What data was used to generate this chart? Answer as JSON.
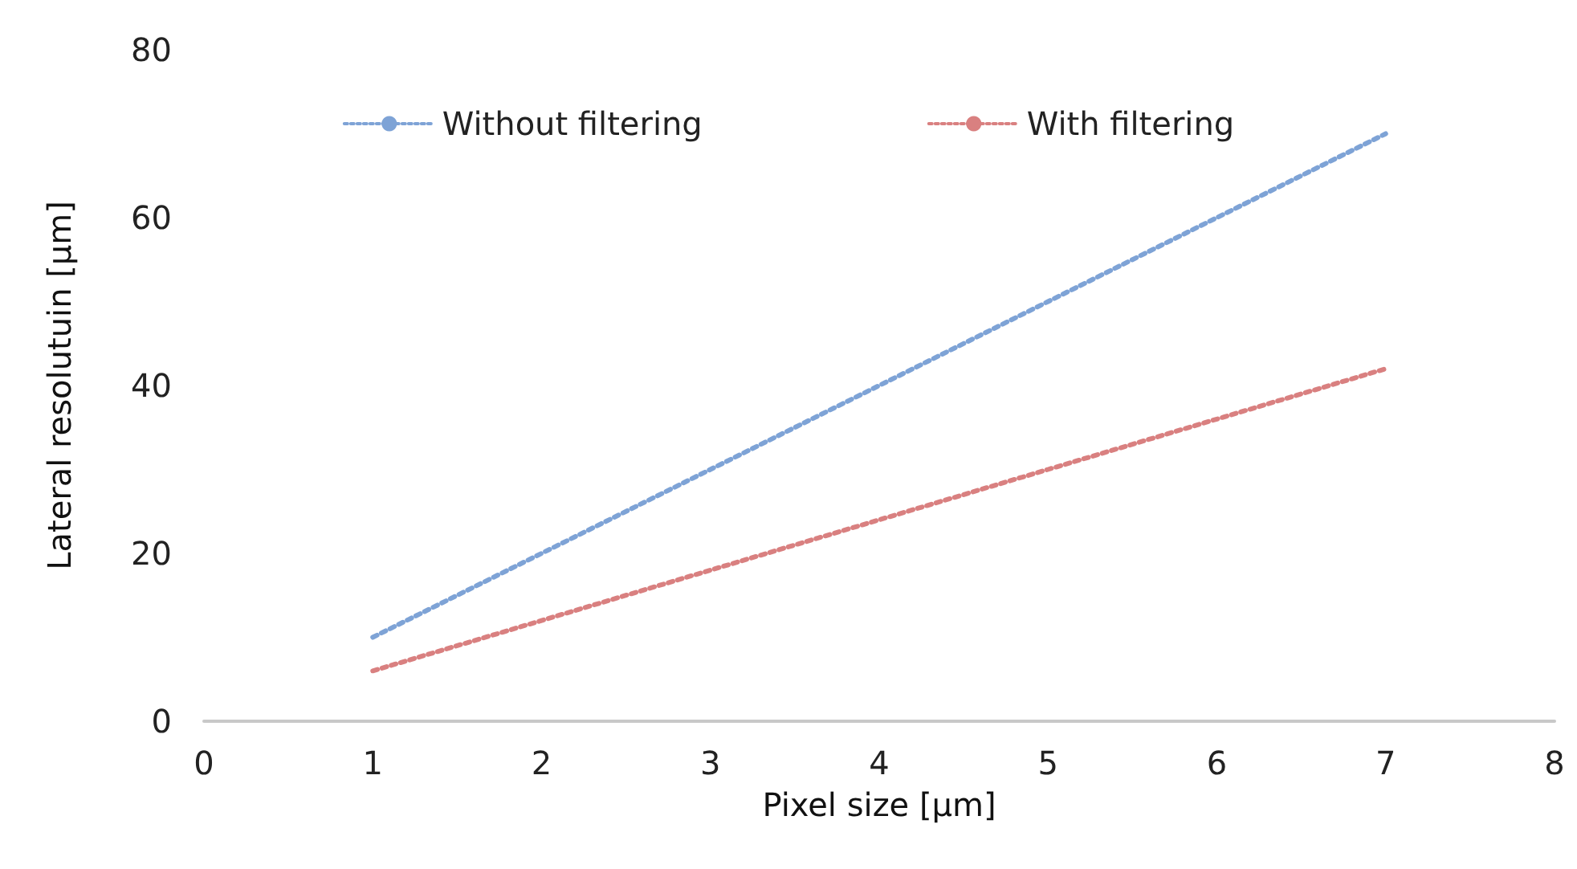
{
  "chart_data": {
    "type": "line",
    "xlabel": "Pixel size [µm]",
    "ylabel": "Lateral resolutuin [µm]",
    "x": [
      1,
      2,
      3,
      4,
      5,
      6,
      7
    ],
    "series": [
      {
        "name": "Without filtering",
        "color": "#7ea3d6",
        "values": [
          10,
          20,
          30,
          40,
          50,
          60,
          70
        ]
      },
      {
        "name": "With filtering",
        "color": "#d98080",
        "values": [
          6,
          12,
          18,
          24,
          30,
          36,
          42
        ]
      }
    ],
    "xlim": [
      0,
      8
    ],
    "xticks": [
      0,
      1,
      2,
      3,
      4,
      5,
      6,
      7,
      8
    ],
    "ylim": [
      0,
      80
    ],
    "yticks": [
      0,
      20,
      40,
      60,
      80
    ],
    "grid": false,
    "legend": "top",
    "marker": "none",
    "line_style": "dotted"
  }
}
